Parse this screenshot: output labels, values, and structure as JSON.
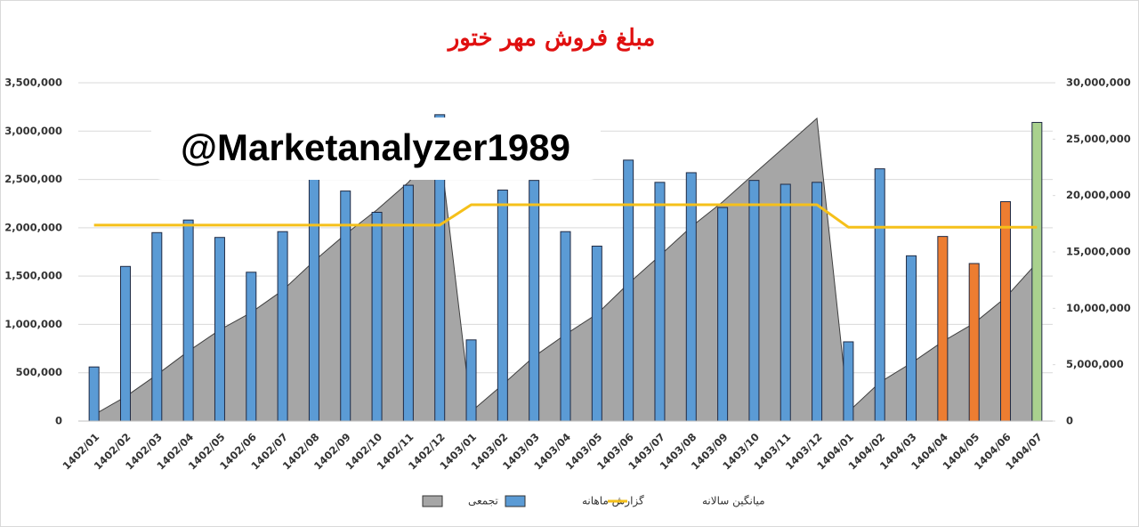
{
  "chart_data": {
    "type": "combo",
    "title": "مبلغ فروش مهر ختور",
    "watermark": "@Marketanalyzer1989",
    "categories": [
      "1402/01",
      "1402/02",
      "1402/03",
      "1402/04",
      "1402/05",
      "1402/06",
      "1402/07",
      "1402/08",
      "1402/09",
      "1402/10",
      "1402/11",
      "1402/12",
      "1403/01",
      "1403/02",
      "1403/03",
      "1403/04",
      "1403/05",
      "1403/06",
      "1403/07",
      "1403/08",
      "1403/09",
      "1403/10",
      "1403/11",
      "1403/12",
      "1404/01",
      "1404/02",
      "1404/03",
      "1404/04",
      "1404/05",
      "1404/06",
      "1404/07"
    ],
    "ylim": [
      0,
      3500000
    ],
    "yticks": [
      0,
      {
        "value": 500000,
        "label": "500,000"
      },
      {
        "value": 1000000,
        "label": "1,000,000"
      },
      {
        "value": 1500000,
        "label": "1,500,000"
      },
      {
        "value": 2000000,
        "label": "2,000,000"
      },
      {
        "value": 2500000,
        "label": "2,500,000"
      },
      {
        "value": 3000000,
        "label": "3,000,000"
      },
      {
        "value": 3500000,
        "label": "3,500,000"
      }
    ],
    "y2lim": [
      0,
      30000000
    ],
    "y2ticks": [
      0,
      {
        "value": 5000000,
        "label": "5,000,000"
      },
      {
        "value": 10000000,
        "label": "10,000,000"
      },
      {
        "value": 15000000,
        "label": "15,000,000"
      },
      {
        "value": 20000000,
        "label": "20,000,000"
      },
      {
        "value": 25000000,
        "label": "25,000,000"
      },
      {
        "value": 30000000,
        "label": "30,000,000"
      }
    ],
    "grid": true,
    "legend": "bottom",
    "series": [
      {
        "name": "تجمعی",
        "type": "area",
        "axis": "y2",
        "color": "#a6a6a6",
        "values": [
          560000,
          2160000,
          4110000,
          6190000,
          8090000,
          9630000,
          11590000,
          14190000,
          16570000,
          18730000,
          21170000,
          24340000,
          840000,
          3230000,
          5720000,
          7680000,
          9490000,
          12190000,
          14660000,
          17230000,
          19440000,
          21930000,
          24380000,
          26850000,
          820000,
          3430000,
          5140000,
          7050000,
          8680000,
          10950000,
          14040000
        ]
      },
      {
        "name": "گزارش ماهانه",
        "type": "bar",
        "color": "#5b9bd5",
        "colors": [
          "#5b9bd5",
          "#5b9bd5",
          "#5b9bd5",
          "#5b9bd5",
          "#5b9bd5",
          "#5b9bd5",
          "#5b9bd5",
          "#5b9bd5",
          "#5b9bd5",
          "#5b9bd5",
          "#5b9bd5",
          "#5b9bd5",
          "#5b9bd5",
          "#5b9bd5",
          "#5b9bd5",
          "#5b9bd5",
          "#5b9bd5",
          "#5b9bd5",
          "#5b9bd5",
          "#5b9bd5",
          "#5b9bd5",
          "#5b9bd5",
          "#5b9bd5",
          "#5b9bd5",
          "#5b9bd5",
          "#5b9bd5",
          "#5b9bd5",
          "#ed7d31",
          "#ed7d31",
          "#ed7d31",
          "#a9d18e"
        ],
        "values": [
          560000,
          1600000,
          1950000,
          2080000,
          1900000,
          1540000,
          1960000,
          2600000,
          2380000,
          2160000,
          2440000,
          3170000,
          840000,
          2390000,
          2490000,
          1960000,
          1810000,
          2700000,
          2470000,
          2570000,
          2210000,
          2490000,
          2450000,
          2470000,
          820000,
          2610000,
          1710000,
          1910000,
          1630000,
          2270000,
          3090000
        ]
      },
      {
        "name": "میانگین سالانه",
        "type": "line",
        "color": "#f5c01a",
        "values": [
          2028000,
          2028000,
          2028000,
          2028000,
          2028000,
          2028000,
          2028000,
          2028000,
          2028000,
          2028000,
          2028000,
          2028000,
          2238000,
          2238000,
          2238000,
          2238000,
          2238000,
          2238000,
          2238000,
          2238000,
          2238000,
          2238000,
          2238000,
          2238000,
          2006000,
          2006000,
          2006000,
          2006000,
          2006000,
          2006000,
          2006000
        ]
      }
    ]
  }
}
